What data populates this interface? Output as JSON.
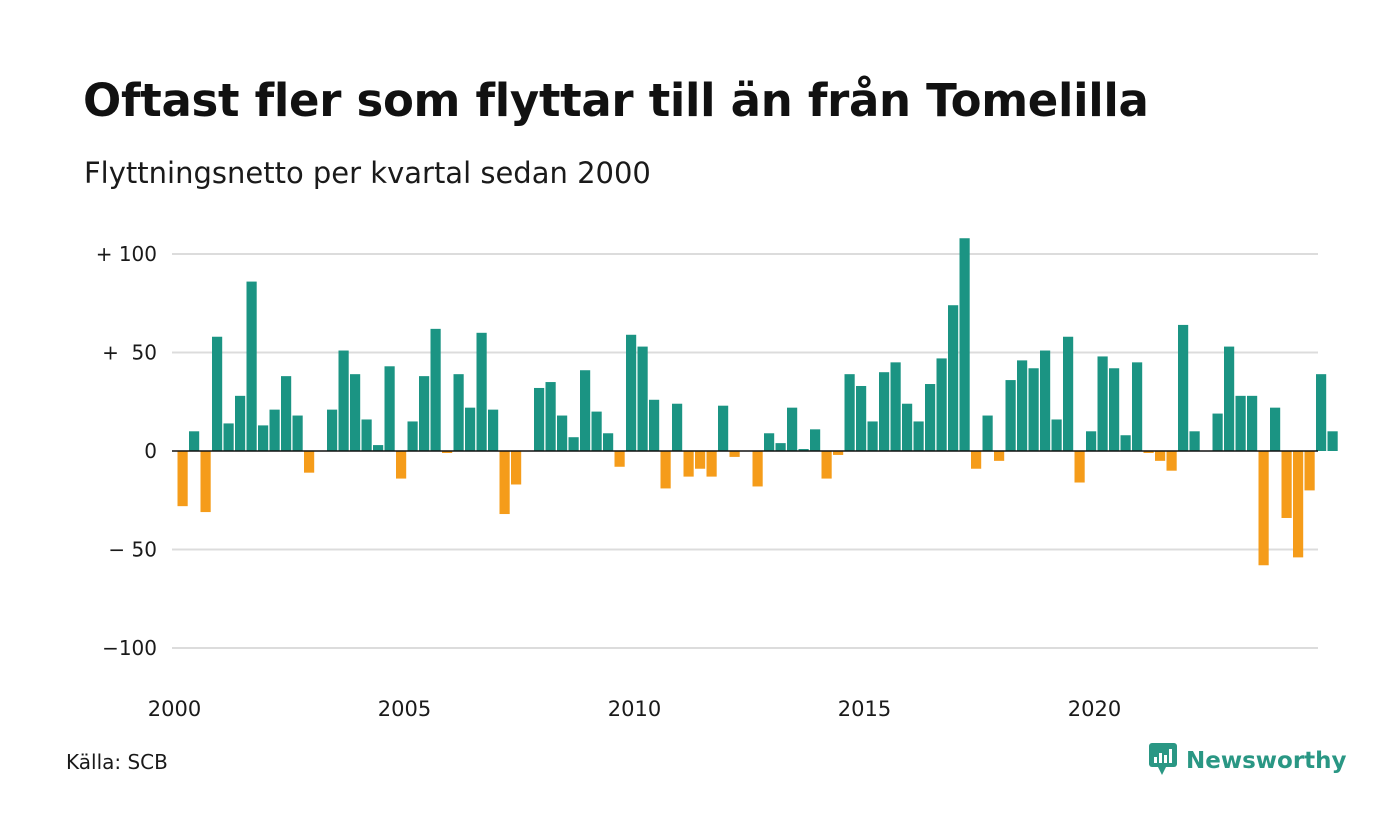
{
  "header": {
    "title": "Oftast fler som flyttar till än från Tomelilla",
    "subtitle": "Flyttningsnetto per kvartal sedan 2000"
  },
  "footer": {
    "source": "Källa: SCB",
    "brand": "Newsworthy",
    "brand_icon": "bar-chart-speech-bubble-icon"
  },
  "colors": {
    "positive": "#1b9483",
    "negative": "#f59c1a",
    "grid": "#dcdcdc",
    "brand": "#2a9784"
  },
  "chart_data": {
    "type": "bar",
    "title": "Oftast fler som flyttar till än från Tomelilla",
    "subtitle": "Flyttningsnetto per kvartal sedan 2000",
    "xlabel": "",
    "ylabel": "",
    "ylim": [
      -110,
      110
    ],
    "y_ticks": [
      {
        "value": 100,
        "label": "+ 100"
      },
      {
        "value": 50,
        "label": "+  50"
      },
      {
        "value": 0,
        "label": "0"
      },
      {
        "value": -50,
        "label": "− 50"
      },
      {
        "value": -100,
        "label": "−100"
      }
    ],
    "x_ticks": [
      "2000",
      "2005",
      "2010",
      "2015",
      "2020"
    ],
    "grid": true,
    "start": "2000 Q1",
    "categories": [
      "2000 Q1",
      "2000 Q2",
      "2000 Q3",
      "2000 Q4",
      "2001 Q1",
      "2001 Q2",
      "2001 Q3",
      "2001 Q4",
      "2002 Q1",
      "2002 Q2",
      "2002 Q3",
      "2002 Q4",
      "2003 Q1",
      "2003 Q2",
      "2003 Q3",
      "2003 Q4",
      "2004 Q1",
      "2004 Q2",
      "2004 Q3",
      "2004 Q4",
      "2005 Q1",
      "2005 Q2",
      "2005 Q3",
      "2005 Q4",
      "2006 Q1",
      "2006 Q2",
      "2006 Q3",
      "2006 Q4",
      "2007 Q1",
      "2007 Q2",
      "2007 Q3",
      "2007 Q4",
      "2008 Q1",
      "2008 Q2",
      "2008 Q3",
      "2008 Q4",
      "2009 Q1",
      "2009 Q2",
      "2009 Q3",
      "2009 Q4",
      "2010 Q1",
      "2010 Q2",
      "2010 Q3",
      "2010 Q4",
      "2011 Q1",
      "2011 Q2",
      "2011 Q3",
      "2011 Q4",
      "2012 Q1",
      "2012 Q2",
      "2012 Q3",
      "2012 Q4",
      "2013 Q1",
      "2013 Q2",
      "2013 Q3",
      "2013 Q4",
      "2014 Q1",
      "2014 Q2",
      "2014 Q3",
      "2014 Q4",
      "2015 Q1",
      "2015 Q2",
      "2015 Q3",
      "2015 Q4",
      "2016 Q1",
      "2016 Q2",
      "2016 Q3",
      "2016 Q4",
      "2017 Q1",
      "2017 Q2",
      "2017 Q3",
      "2017 Q4",
      "2018 Q1",
      "2018 Q2",
      "2018 Q3",
      "2018 Q4",
      "2019 Q1",
      "2019 Q2",
      "2019 Q3",
      "2019 Q4",
      "2020 Q1",
      "2020 Q2",
      "2020 Q3",
      "2020 Q4",
      "2021 Q1",
      "2021 Q2",
      "2021 Q3",
      "2021 Q4",
      "2022 Q1",
      "2022 Q2",
      "2022 Q3",
      "2022 Q4",
      "2023 Q1",
      "2023 Q2",
      "2023 Q3",
      "2023 Q4",
      "2024 Q1",
      "2024 Q2",
      "2024 Q3",
      "2024 Q4",
      "2025 Q1"
    ],
    "values": [
      -28,
      10,
      -31,
      58,
      14,
      28,
      86,
      13,
      21,
      38,
      18,
      -11,
      0,
      21,
      51,
      39,
      16,
      3,
      43,
      -14,
      15,
      38,
      62,
      -1,
      39,
      22,
      60,
      21,
      -32,
      -17,
      0,
      32,
      35,
      18,
      7,
      41,
      20,
      9,
      -8,
      59,
      53,
      26,
      -19,
      24,
      -13,
      -9,
      -13,
      23,
      -3,
      0,
      -18,
      9,
      4,
      22,
      1,
      11,
      -14,
      -2,
      39,
      33,
      15,
      40,
      45,
      24,
      15,
      34,
      47,
      74,
      108,
      -9,
      18,
      -5,
      36,
      46,
      42,
      51,
      16,
      58,
      -16,
      10,
      48,
      42,
      8,
      45,
      -1,
      -5,
      -10,
      64,
      10,
      0,
      19,
      53,
      28,
      28,
      -58,
      22,
      -34,
      -54,
      -20,
      39,
      10
    ]
  }
}
